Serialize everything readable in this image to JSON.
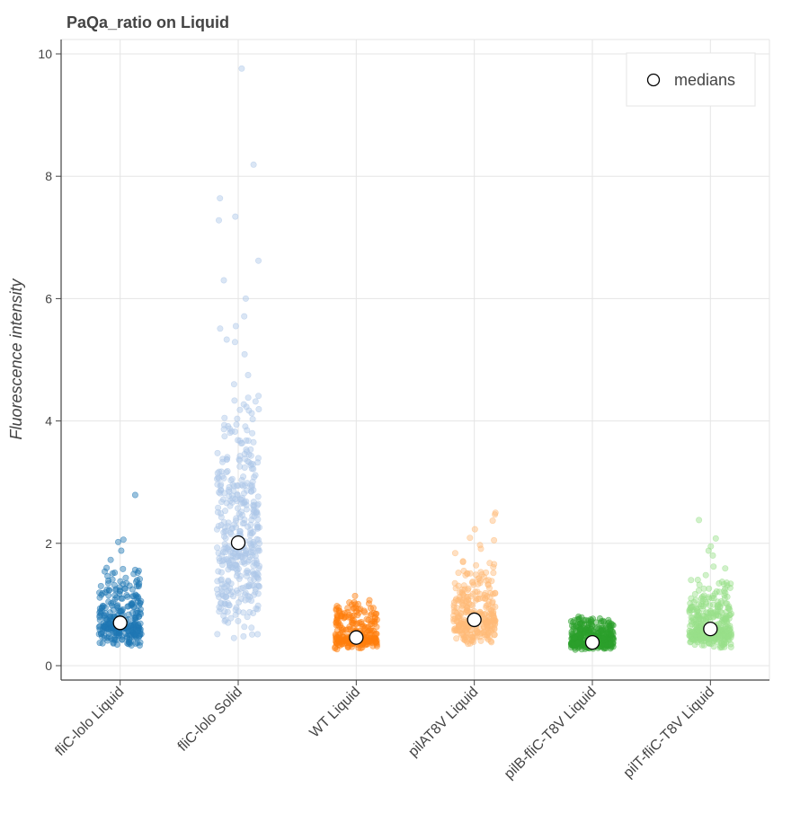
{
  "chart_data": {
    "type": "scatter",
    "title": "PaQa_ratio on Liquid",
    "xlabel": "",
    "ylabel": "Fluorescence intensity",
    "ylim": [
      -0.25,
      10.25
    ],
    "yticks": [
      0,
      2,
      4,
      6,
      8,
      10
    ],
    "grid": true,
    "legend": {
      "entries": [
        "medians"
      ],
      "placement": "top-right"
    },
    "categories": [
      "fliC-lolo Liquid",
      "fliC-lolo Solid",
      "WT Liquid",
      "pilAT8V Liquid",
      "pilB-fliC-T8V Liquid",
      "pilT-fliC-T8V Liquid"
    ],
    "series": [
      {
        "category": "fliC-lolo Liquid",
        "color": "#1f77b4",
        "median": 0.7,
        "range": [
          0.33,
          2.79
        ],
        "point_count": 300,
        "outliers": [
          2.79,
          2.06,
          2.02,
          1.88,
          1.73,
          1.58,
          1.55,
          1.52,
          1.5
        ]
      },
      {
        "category": "fliC-lolo Solid",
        "color": "#aec7e8",
        "median": 2.01,
        "range": [
          0.42,
          9.76
        ],
        "point_count": 400,
        "outliers": [
          9.76,
          8.19,
          7.64,
          7.34,
          7.28,
          6.62,
          6.3,
          6.0,
          5.71,
          5.55,
          5.51,
          5.33,
          5.29,
          5.09,
          4.75,
          4.6,
          4.41,
          4.38,
          4.18,
          4.05
        ]
      },
      {
        "category": "WT Liquid",
        "color": "#ff7f0e",
        "median": 0.46,
        "range": [
          0.26,
          1.14
        ],
        "point_count": 250,
        "outliers": [
          1.14,
          1.07,
          1.0,
          0.93,
          0.87,
          0.86
        ]
      },
      {
        "category": "pilAT8V Liquid",
        "color": "#ffbb78",
        "median": 0.75,
        "range": [
          0.35,
          2.5
        ],
        "point_count": 280,
        "outliers": [
          2.5,
          2.47,
          2.37,
          2.23,
          2.09,
          2.05,
          1.97,
          1.91,
          1.84,
          1.66,
          1.64
        ]
      },
      {
        "category": "pilB-fliC-T8V Liquid",
        "color": "#2ca02c",
        "median": 0.38,
        "range": [
          0.26,
          0.8
        ],
        "point_count": 380,
        "outliers": [
          0.8,
          0.79,
          0.77,
          0.74
        ]
      },
      {
        "category": "pilT-fliC-T8V Liquid",
        "color": "#98df8a",
        "median": 0.6,
        "range": [
          0.28,
          2.38
        ],
        "point_count": 350,
        "outliers": [
          2.38,
          2.08,
          1.95,
          1.88,
          1.8,
          1.62,
          1.59,
          1.48,
          1.4,
          1.31
        ]
      }
    ]
  }
}
